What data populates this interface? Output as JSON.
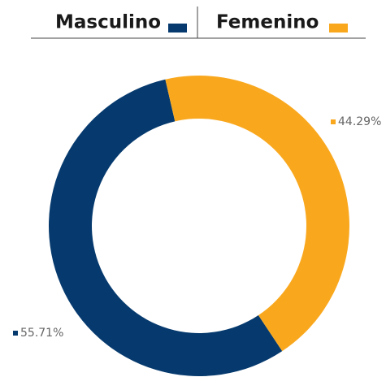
{
  "chart_data": {
    "type": "pie",
    "donut": true,
    "categories": [
      "Masculino",
      "Femenino"
    ],
    "values": [
      55.71,
      44.29
    ],
    "value_labels": [
      "55.71%",
      "44.29%"
    ],
    "colors": [
      "#063a6e",
      "#f9a81e"
    ]
  }
}
